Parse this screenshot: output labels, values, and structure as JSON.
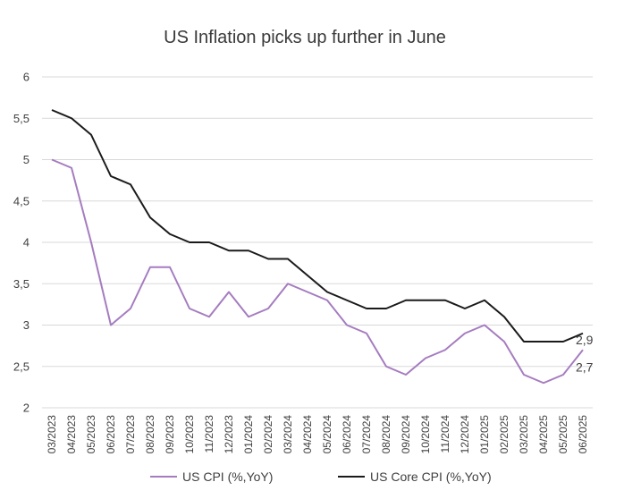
{
  "chart_data": {
    "type": "line",
    "title": "US Inflation picks up further in June",
    "xlabel": "",
    "ylabel": "",
    "ylim": [
      2,
      6
    ],
    "yticks": [
      "2",
      "2,5",
      "3",
      "3,5",
      "4",
      "4,5",
      "5",
      "5,5",
      "6"
    ],
    "grid": true,
    "legend_position": "bottom",
    "categories": [
      "03/2023",
      "04/2023",
      "05/2023",
      "06/2023",
      "07/2023",
      "08/2023",
      "09/2023",
      "10/2023",
      "11/2023",
      "12/2023",
      "01/2024",
      "02/2024",
      "03/2024",
      "04/2024",
      "05/2024",
      "06/2024",
      "07/2024",
      "08/2024",
      "09/2024",
      "10/2024",
      "11/2024",
      "12/2024",
      "01/2025",
      "02/2025",
      "03/2025",
      "04/2025",
      "05/2025",
      "06/2025"
    ],
    "series": [
      {
        "name": "US CPI (%,YoY)",
        "color": "#a57cc0",
        "values": [
          5.0,
          4.9,
          4.0,
          3.0,
          3.2,
          3.7,
          3.7,
          3.2,
          3.1,
          3.4,
          3.1,
          3.2,
          3.5,
          3.4,
          3.3,
          3.0,
          2.9,
          2.5,
          2.4,
          2.6,
          2.7,
          2.9,
          3.0,
          2.8,
          2.4,
          2.3,
          2.4,
          2.7
        ],
        "end_label": "2,7"
      },
      {
        "name": "US Core CPI (%,YoY)",
        "color": "#1a1a1a",
        "values": [
          5.6,
          5.5,
          5.3,
          4.8,
          4.7,
          4.3,
          4.1,
          4.0,
          4.0,
          3.9,
          3.9,
          3.8,
          3.8,
          3.6,
          3.4,
          3.3,
          3.2,
          3.2,
          3.3,
          3.3,
          3.3,
          3.2,
          3.3,
          3.1,
          2.8,
          2.8,
          2.8,
          2.9
        ],
        "end_label": "2,9"
      }
    ]
  }
}
